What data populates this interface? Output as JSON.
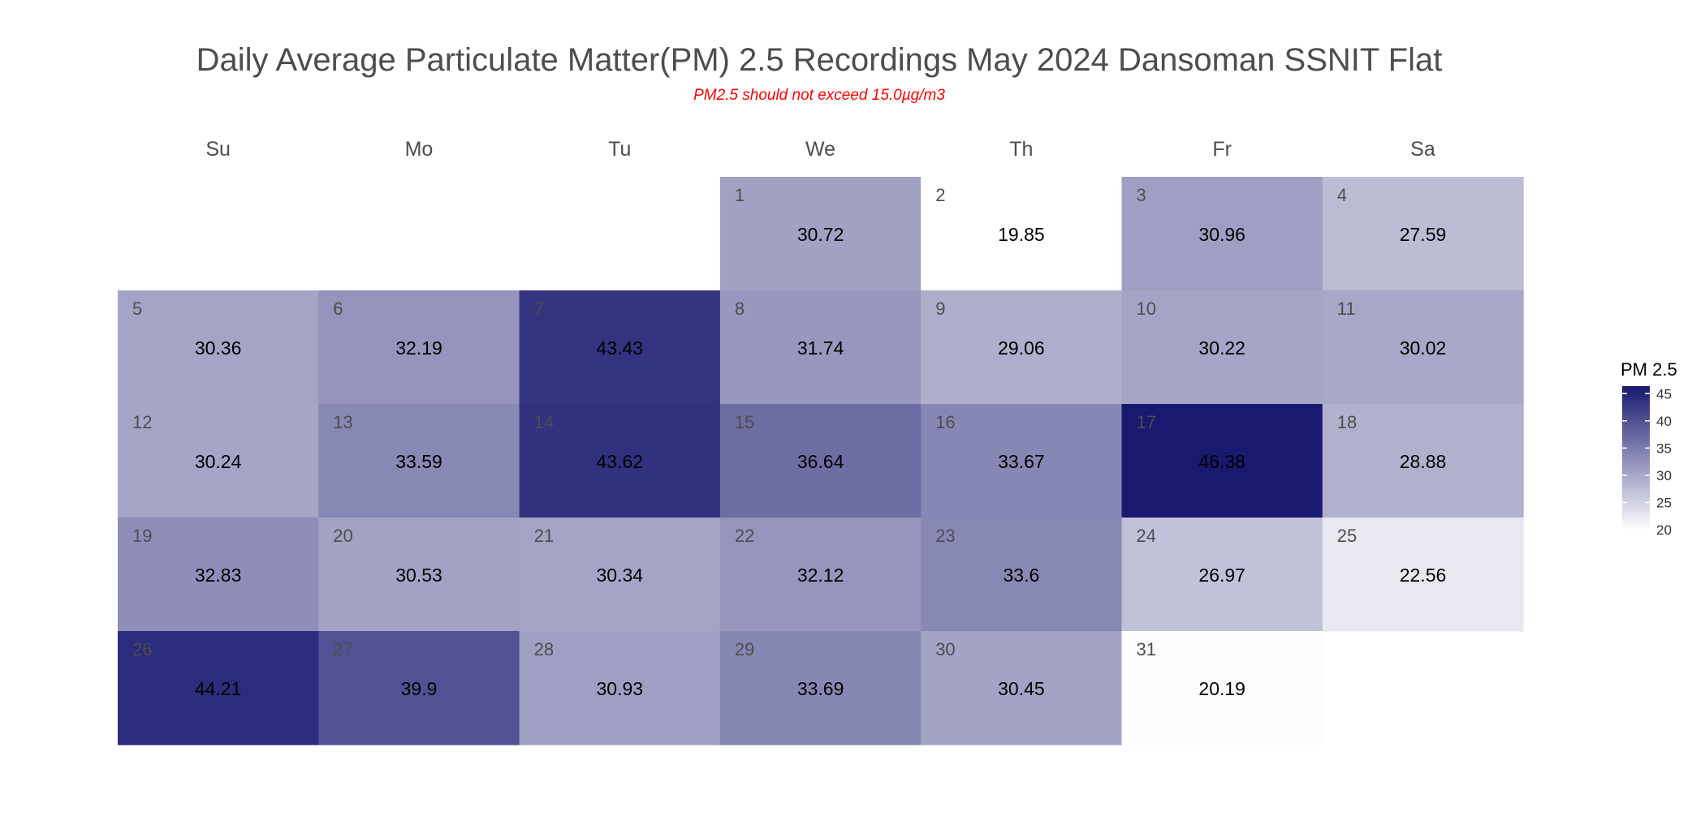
{
  "chart_data": {
    "type": "heatmap",
    "title": "Daily Average Particulate Matter(PM) 2.5 Recordings May 2024 Dansoman SSNIT Flat",
    "subtitle": "PM2.5 should not exceed 15.0µg/m3",
    "weekdays": [
      "Su",
      "Mo",
      "Tu",
      "We",
      "Th",
      "Fr",
      "Sa"
    ],
    "first_weekday_index": 3,
    "days": [
      {
        "day": 1,
        "value": 30.72
      },
      {
        "day": 2,
        "value": 19.85
      },
      {
        "day": 3,
        "value": 30.96
      },
      {
        "day": 4,
        "value": 27.59
      },
      {
        "day": 5,
        "value": 30.36
      },
      {
        "day": 6,
        "value": 32.19
      },
      {
        "day": 7,
        "value": 43.43
      },
      {
        "day": 8,
        "value": 31.74
      },
      {
        "day": 9,
        "value": 29.06
      },
      {
        "day": 10,
        "value": 30.22
      },
      {
        "day": 11,
        "value": 30.02
      },
      {
        "day": 12,
        "value": 30.24
      },
      {
        "day": 13,
        "value": 33.59
      },
      {
        "day": 14,
        "value": 43.62
      },
      {
        "day": 15,
        "value": 36.64
      },
      {
        "day": 16,
        "value": 33.67
      },
      {
        "day": 17,
        "value": 46.38
      },
      {
        "day": 18,
        "value": 28.88
      },
      {
        "day": 19,
        "value": 32.83
      },
      {
        "day": 20,
        "value": 30.53
      },
      {
        "day": 21,
        "value": 30.34
      },
      {
        "day": 22,
        "value": 32.12
      },
      {
        "day": 23,
        "value": 33.6
      },
      {
        "day": 24,
        "value": 26.97
      },
      {
        "day": 25,
        "value": 22.56
      },
      {
        "day": 26,
        "value": 44.21
      },
      {
        "day": 27,
        "value": 39.9
      },
      {
        "day": 28,
        "value": 30.93
      },
      {
        "day": 29,
        "value": 33.69
      },
      {
        "day": 30,
        "value": 30.45
      },
      {
        "day": 31,
        "value": 20.19
      }
    ],
    "legend": {
      "title": "PM 2.5",
      "ticks": [
        20,
        25,
        30,
        35,
        40,
        45
      ],
      "range": [
        19.85,
        46.38
      ],
      "color_low": "#ffffff",
      "color_high": "#191970"
    }
  }
}
